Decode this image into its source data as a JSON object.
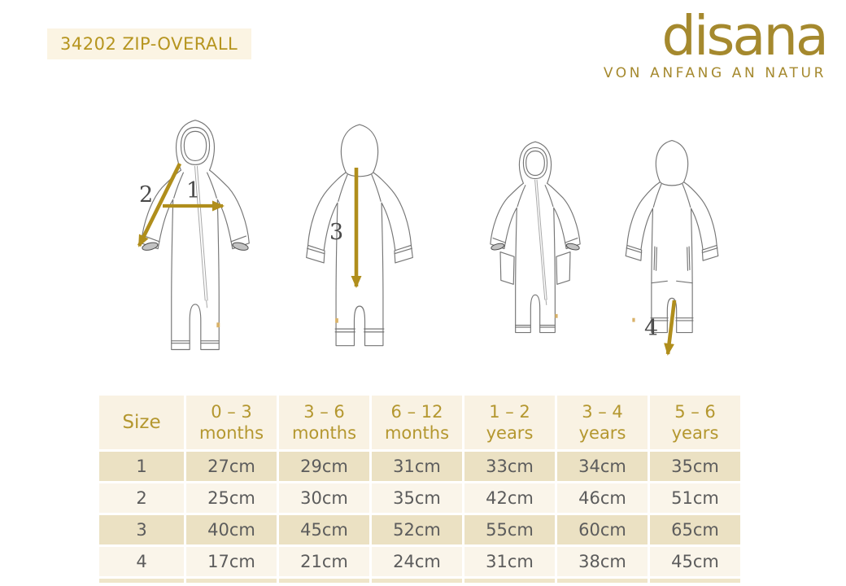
{
  "header": {
    "product_title": "34202 ZIP-OVERALL",
    "brand_wordmark": "disana",
    "brand_tagline": "VON ANFANG AN NATUR"
  },
  "diagram": {
    "description": "Technical line drawings of a hooded zip-overall: front view, back view, front view with pockets, back view",
    "measurement_labels": [
      "1",
      "2",
      "3",
      "4"
    ]
  },
  "size_table": {
    "column_headers": [
      "Size",
      "0 – 3 months",
      "3 – 6 months",
      "6 – 12 months",
      "1 – 2 years",
      "3 – 4 years",
      "5 – 6 years"
    ],
    "rows": [
      {
        "size": "1",
        "values": [
          "27cm",
          "29cm",
          "31cm",
          "33cm",
          "34cm",
          "35cm"
        ]
      },
      {
        "size": "2",
        "values": [
          "25cm",
          "30cm",
          "35cm",
          "42cm",
          "46cm",
          "51cm"
        ]
      },
      {
        "size": "3",
        "values": [
          "40cm",
          "45cm",
          "52cm",
          "55cm",
          "60cm",
          "65cm"
        ]
      },
      {
        "size": "4",
        "values": [
          "17cm",
          "21cm",
          "24cm",
          "31cm",
          "38cm",
          "45cm"
        ]
      }
    ]
  },
  "colors": {
    "brand_gold": "#A5892E",
    "title_gold": "#B6951F",
    "title_background": "#FBF4E3",
    "arrow_gold": "#B08E1C",
    "table_header_bg": "#F9F2E3",
    "table_header_text": "#B4972F",
    "row_tan": "#EBE1C3",
    "row_cream": "#FAF5EA",
    "cell_text": "#5C5C5C"
  }
}
